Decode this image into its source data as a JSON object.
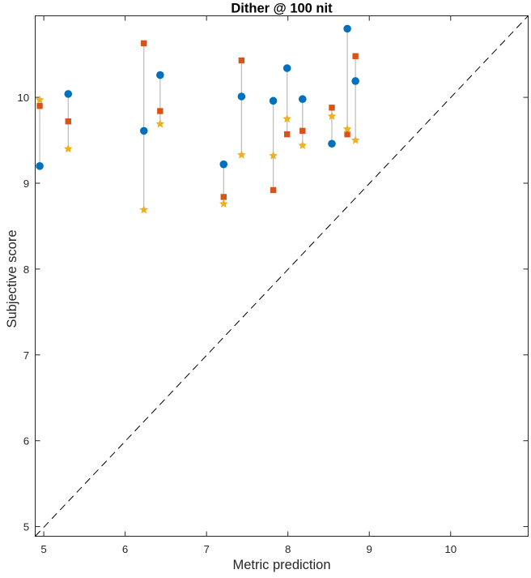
{
  "chart_data": {
    "type": "scatter",
    "title": "Dither @ 100 nit",
    "xlabel": "Metric prediction",
    "ylabel": "Subjective score",
    "xlim": [
      4.89,
      10.95
    ],
    "ylim": [
      4.89,
      10.95
    ],
    "xticks": [
      5,
      6,
      7,
      8,
      9,
      10
    ],
    "yticks": [
      5,
      6,
      7,
      8,
      9,
      10
    ],
    "grid": false,
    "legend": "none",
    "identity_line": {
      "type": "dashed",
      "color": "#000000",
      "from": [
        4.89,
        4.89
      ],
      "to": [
        10.95,
        10.95
      ]
    },
    "connector_color": "#bbbbbb",
    "groups_x": [
      4.95,
      5.3,
      6.23,
      6.43,
      7.21,
      7.43,
      7.82,
      7.99,
      8.18,
      8.54,
      8.73,
      8.83
    ],
    "series": [
      {
        "name": "circle-series",
        "marker": "circle",
        "color": "#0072BD",
        "values": [
          9.2,
          10.04,
          9.61,
          10.26,
          9.22,
          10.01,
          9.96,
          10.34,
          9.98,
          9.46,
          10.8,
          10.19
        ]
      },
      {
        "name": "square-series",
        "marker": "square",
        "color": "#D95319",
        "values": [
          9.9,
          9.72,
          10.63,
          9.84,
          8.84,
          10.43,
          8.92,
          9.57,
          9.61,
          9.88,
          9.57,
          10.48
        ]
      },
      {
        "name": "star-series",
        "marker": "pentagram",
        "color": "#EDB120",
        "values": [
          9.97,
          9.4,
          8.69,
          9.69,
          8.76,
          9.33,
          9.32,
          9.75,
          9.44,
          9.78,
          9.63,
          9.5
        ]
      }
    ]
  }
}
